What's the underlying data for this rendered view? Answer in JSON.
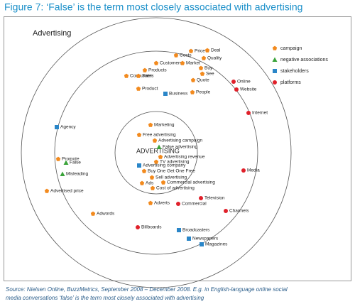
{
  "title": "Figure 7: ‘False’ is the term most closely associated with advertising",
  "diagram": {
    "label": "Advertising",
    "center_label": "ADVERTISING",
    "groups": [
      {
        "label": "campaign",
        "color": "#f28a1e",
        "shape": "pentagon",
        "nodes": [
          "Deal",
          "Price",
          "Costs",
          "Quality",
          "Customers",
          "Market",
          "Buy",
          "Products",
          "See",
          "Consumers",
          "Sales",
          "Quote",
          "Product",
          "People",
          "Marketing",
          "Free advertising",
          "Advertising campaign",
          "Advertising revenue",
          "TV advertising",
          "Buy One Get One Free",
          "Sell advertising",
          "Ads",
          "Commercial advertising",
          "Cost of advertising",
          "Promote",
          "Advertised price",
          "Adverts",
          "Adwords"
        ]
      },
      {
        "label": "negative associations",
        "color": "#3aa33a",
        "shape": "triangle",
        "nodes": [
          "False advertising",
          "False",
          "Misleading"
        ]
      },
      {
        "label": "stakeholders",
        "color": "#2a86c8",
        "shape": "square",
        "nodes": [
          "Business",
          "Agency",
          "Advertising company",
          "Broadcasters",
          "Newspapers",
          "Magazines"
        ]
      },
      {
        "label": "platforms",
        "color": "#e0202a",
        "shape": "circle",
        "nodes": [
          "Online",
          "Website",
          "Internet",
          "Media",
          "Television",
          "Commercial",
          "Channels",
          "Billboards"
        ]
      }
    ]
  },
  "source": [
    "Source: Nielsen Online, BuzzMetrics, September 2008 – December 2008. E.g. in English-language online social",
    "media conversations ‘false’ is the term most closely associated with advertising"
  ]
}
